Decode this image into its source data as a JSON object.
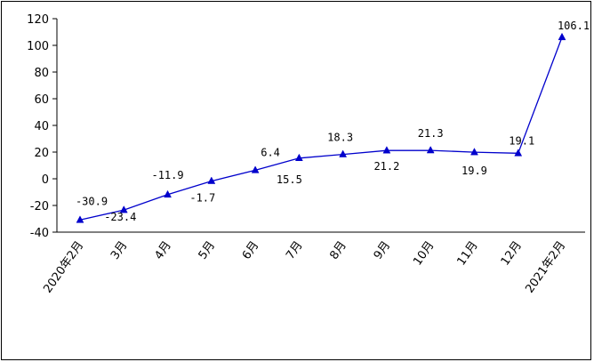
{
  "chart_data": {
    "type": "line",
    "categories": [
      "2020年2月",
      "3月",
      "4月",
      "5月",
      "6月",
      "7月",
      "8月",
      "9月",
      "10月",
      "11月",
      "12月",
      "2021年2月"
    ],
    "series": [
      {
        "values": [
          -30.9,
          -23.4,
          -11.9,
          -1.7,
          6.4,
          15.5,
          18.3,
          21.2,
          21.3,
          19.9,
          19.1,
          106.1
        ]
      }
    ],
    "data_labels": [
      "-30.9",
      "-23.4",
      "-11.9",
      "-1.7",
      "6.4",
      "15.5",
      "18.3",
      "21.2",
      "21.3",
      "19.9",
      "19.1",
      "106.1"
    ],
    "yticks": [
      -40,
      -20,
      0,
      20,
      40,
      60,
      80,
      100,
      120
    ],
    "ylim": [
      -40,
      120
    ],
    "grid": false,
    "legend": "none",
    "marker": "triangle",
    "line_color": "#0000CC"
  }
}
